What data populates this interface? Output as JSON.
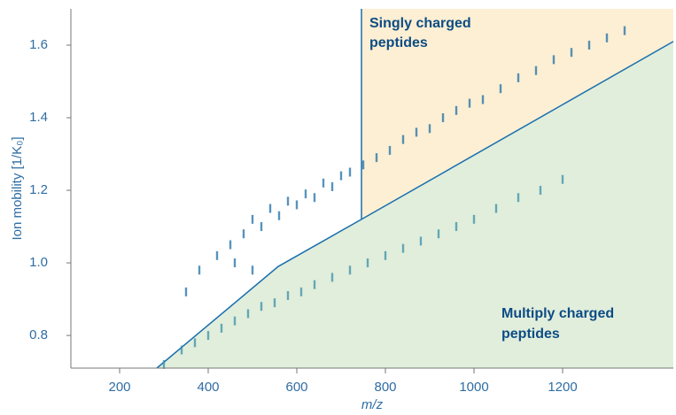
{
  "chart_data": {
    "type": "scatter",
    "xlabel": "m/z",
    "ylabel": "Ion mobility [1/K₀]",
    "xlim": [
      90,
      1450
    ],
    "ylim": [
      0.71,
      1.7
    ],
    "xticks": [
      200,
      400,
      600,
      800,
      1000,
      1200
    ],
    "yticks": [
      0.8,
      {
        "value": 1,
        "label": "1.0"
      },
      1.2,
      1.4,
      1.6
    ],
    "regions": [
      {
        "label": [
          "Singly charged",
          "peptides"
        ],
        "color": "#fbeccb",
        "x": [
          746,
          746,
          1450,
          1450
        ],
        "y": [
          1.7,
          1.12,
          1.61,
          1.7
        ]
      },
      {
        "label": [
          "Multiply charged",
          "peptides"
        ],
        "color": "#dcebd6",
        "x": [
          284,
          558,
          746,
          1450,
          1450
        ],
        "y": [
          0.71,
          0.99,
          1.12,
          1.61,
          0.71
        ]
      }
    ],
    "series": [
      {
        "color": "#1f6fa8",
        "x": [
          350,
          380,
          420,
          450,
          460,
          480,
          500,
          500,
          520,
          540,
          560,
          580,
          600,
          620,
          640,
          660,
          680,
          700,
          720,
          750,
          780,
          810,
          840,
          870,
          900,
          930,
          960,
          990,
          1020,
          1060,
          1100,
          1140,
          1180,
          1220,
          1260,
          1300,
          1340
        ],
        "values": [
          0.92,
          0.98,
          1.02,
          1.05,
          1.0,
          1.08,
          1.12,
          0.98,
          1.1,
          1.15,
          1.13,
          1.17,
          1.16,
          1.19,
          1.18,
          1.22,
          1.21,
          1.24,
          1.25,
          1.27,
          1.29,
          1.31,
          1.34,
          1.36,
          1.37,
          1.4,
          1.42,
          1.44,
          1.45,
          1.48,
          1.51,
          1.53,
          1.56,
          1.58,
          1.6,
          1.62,
          1.64
        ]
      },
      {
        "color": "#3a8fa8",
        "x": [
          300,
          340,
          370,
          400,
          430,
          460,
          490,
          520,
          550,
          580,
          610,
          640,
          680,
          720,
          760,
          800,
          840,
          880,
          920,
          960,
          1000,
          1050,
          1100,
          1150,
          1200
        ],
        "values": [
          0.72,
          0.76,
          0.78,
          0.8,
          0.82,
          0.84,
          0.86,
          0.88,
          0.89,
          0.91,
          0.92,
          0.94,
          0.96,
          0.98,
          1.0,
          1.02,
          1.04,
          1.06,
          1.08,
          1.1,
          1.12,
          1.15,
          1.18,
          1.2,
          1.23
        ]
      }
    ]
  }
}
